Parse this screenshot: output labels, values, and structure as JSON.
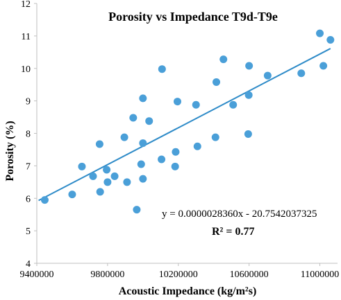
{
  "chart_data": {
    "type": "scatter",
    "title": "Porosity vs Impedance T9d-T9e",
    "xlabel": "Acoustic Impedance (kg/m²s)",
    "ylabel": "Porosity (%)",
    "xlim": [
      9400000,
      11100000
    ],
    "ylim": [
      4,
      12
    ],
    "xticks": [
      9400000,
      9800000,
      10200000,
      10600000,
      11000000
    ],
    "xtick_labels": [
      "9400000",
      "9800000",
      "10200000",
      "10600000",
      "11000000"
    ],
    "yticks": [
      4,
      5,
      6,
      7,
      8,
      9,
      10,
      11,
      12
    ],
    "ytick_labels": [
      "4",
      "5",
      "6",
      "7",
      "8",
      "9",
      "10",
      "11",
      "12"
    ],
    "grid": false,
    "colors": {
      "points": "#4a9fd8",
      "trendline": "#2e8bc8"
    },
    "points": [
      {
        "x": 9445000,
        "y": 5.95
      },
      {
        "x": 9600000,
        "y": 6.12
      },
      {
        "x": 9655000,
        "y": 6.98
      },
      {
        "x": 9718000,
        "y": 6.68
      },
      {
        "x": 9755000,
        "y": 7.67
      },
      {
        "x": 9758000,
        "y": 6.2
      },
      {
        "x": 9795000,
        "y": 6.88
      },
      {
        "x": 9800000,
        "y": 6.5
      },
      {
        "x": 9840000,
        "y": 6.68
      },
      {
        "x": 9895000,
        "y": 7.88
      },
      {
        "x": 9910000,
        "y": 6.5
      },
      {
        "x": 9945000,
        "y": 8.48
      },
      {
        "x": 9965000,
        "y": 5.65
      },
      {
        "x": 9990000,
        "y": 7.05
      },
      {
        "x": 10000000,
        "y": 6.6
      },
      {
        "x": 10000000,
        "y": 7.7
      },
      {
        "x": 10000000,
        "y": 9.08
      },
      {
        "x": 10035000,
        "y": 8.38
      },
      {
        "x": 10105000,
        "y": 7.2
      },
      {
        "x": 10108000,
        "y": 9.98
      },
      {
        "x": 10182000,
        "y": 6.98
      },
      {
        "x": 10185000,
        "y": 7.43
      },
      {
        "x": 10195000,
        "y": 8.98
      },
      {
        "x": 10300000,
        "y": 8.88
      },
      {
        "x": 10308000,
        "y": 7.6
      },
      {
        "x": 10410000,
        "y": 7.88
      },
      {
        "x": 10415000,
        "y": 9.58
      },
      {
        "x": 10455000,
        "y": 10.28
      },
      {
        "x": 10510000,
        "y": 8.88
      },
      {
        "x": 10595000,
        "y": 7.98
      },
      {
        "x": 10598000,
        "y": 9.18
      },
      {
        "x": 10600000,
        "y": 10.08
      },
      {
        "x": 10705000,
        "y": 9.78
      },
      {
        "x": 10895000,
        "y": 9.85
      },
      {
        "x": 11000000,
        "y": 11.08
      },
      {
        "x": 11020000,
        "y": 10.08
      },
      {
        "x": 11060000,
        "y": 10.88
      }
    ],
    "trendline": {
      "x": [
        9410000,
        11060000
      ],
      "equation": "y = 0.0000028360x - 20.7542037325",
      "r_squared_label": "R² = 0.77"
    }
  }
}
